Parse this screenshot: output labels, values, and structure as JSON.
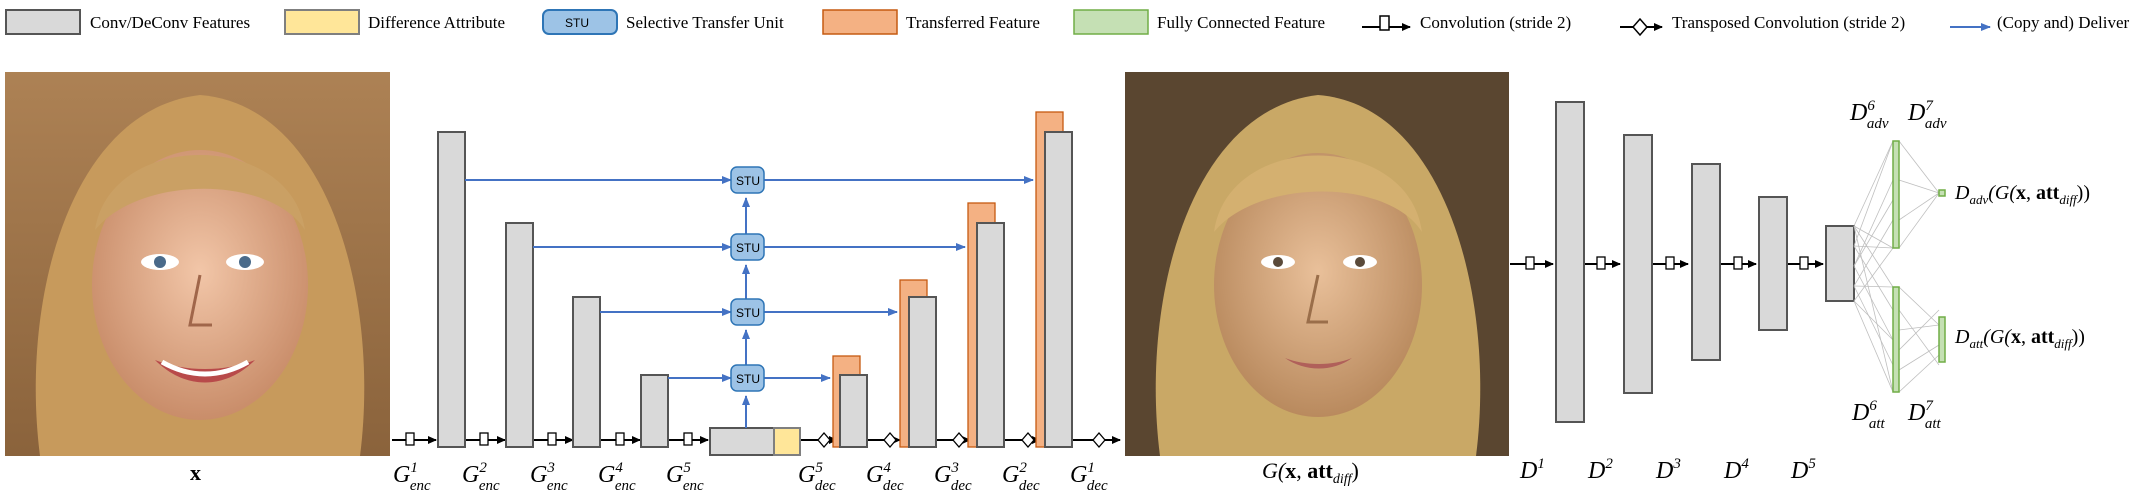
{
  "legend": {
    "items": [
      {
        "label": "Conv/DeConv Features",
        "swatch": "gray"
      },
      {
        "label": "Difference Attribute",
        "swatch": "yellow"
      },
      {
        "label": "Selective Transfer Unit",
        "swatch": "stu",
        "swatch_text": "STU"
      },
      {
        "label": "Transferred Feature",
        "swatch": "orange"
      },
      {
        "label": "Fully Connected Feature",
        "swatch": "green"
      },
      {
        "label": "Convolution (stride 2)",
        "swatch": "conv-arrow"
      },
      {
        "label": "Transposed Convolution (stride 2)",
        "swatch": "deconv-arrow"
      },
      {
        "label": "(Copy and) Deliver",
        "swatch": "blue-arrow"
      }
    ]
  },
  "colors": {
    "feature_gray": "#d9d9d9",
    "feature_stroke": "#555555",
    "diff_yellow": "#ffe699",
    "stu_blue": "#9dc3e6",
    "stu_stroke": "#2e75b6",
    "transfer_orange": "#f4b183",
    "fc_green": "#c5e0b4",
    "fc_stroke": "#70ad47",
    "deliver_blue": "#4472c4"
  },
  "stu_label": "STU",
  "input_photo": {
    "caption": "x",
    "description_icon": "input-face-photo"
  },
  "output_photo": {
    "caption_base": "G(",
    "caption_x": "x",
    "caption_comma": ", ",
    "caption_att": "att",
    "caption_sub": "diff",
    "caption_end": ")"
  },
  "generator": {
    "enc_labels": [
      {
        "base": "G",
        "sup": "1",
        "sub": "enc"
      },
      {
        "base": "G",
        "sup": "2",
        "sub": "enc"
      },
      {
        "base": "G",
        "sup": "3",
        "sub": "enc"
      },
      {
        "base": "G",
        "sup": "4",
        "sub": "enc"
      },
      {
        "base": "G",
        "sup": "5",
        "sub": "enc"
      }
    ],
    "dec_labels": [
      {
        "base": "G",
        "sup": "5",
        "sub": "dec"
      },
      {
        "base": "G",
        "sup": "4",
        "sub": "dec"
      },
      {
        "base": "G",
        "sup": "3",
        "sub": "dec"
      },
      {
        "base": "G",
        "sup": "2",
        "sub": "dec"
      },
      {
        "base": "G",
        "sup": "1",
        "sub": "dec"
      }
    ]
  },
  "discriminator": {
    "labels": [
      {
        "base": "D",
        "sup": "1"
      },
      {
        "base": "D",
        "sup": "2"
      },
      {
        "base": "D",
        "sup": "3"
      },
      {
        "base": "D",
        "sup": "4"
      },
      {
        "base": "D",
        "sup": "5"
      }
    ],
    "adv_top": [
      {
        "base": "D",
        "sup": "6",
        "sub": "adv"
      },
      {
        "base": "D",
        "sup": "7",
        "sub": "adv"
      }
    ],
    "att_bottom": [
      {
        "base": "D",
        "sup": "6",
        "sub": "att"
      },
      {
        "base": "D",
        "sup": "7",
        "sub": "att"
      }
    ],
    "adv_output": {
      "d": "D",
      "sub": "adv",
      "g": "(G(",
      "x": "x",
      "comma": ", ",
      "att": "att",
      "att_sub": "diff",
      "close": "))"
    },
    "att_output": {
      "d": "D",
      "sub": "att",
      "g": "(G(",
      "x": "x",
      "comma": ", ",
      "att": "att",
      "att_sub": "diff",
      "close": "))"
    }
  }
}
